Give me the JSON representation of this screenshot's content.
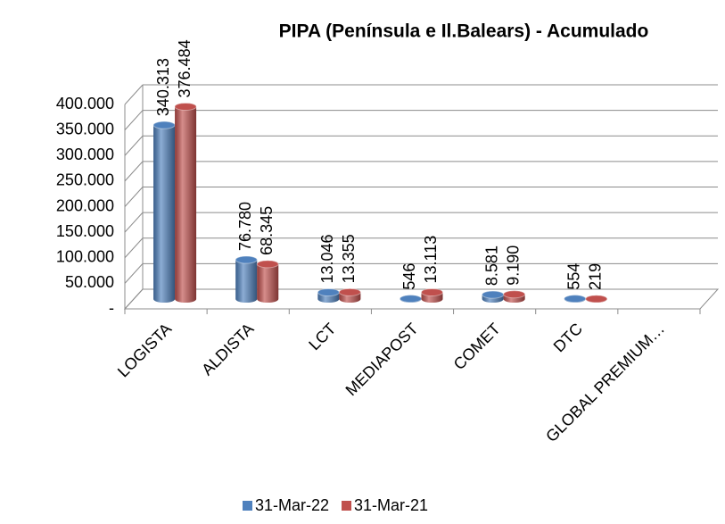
{
  "chart_data": {
    "type": "bar3d",
    "title": "PIPA  (Península e Il.Balears) - Acumulado",
    "categories": [
      "LOGISTA",
      "ALDISTA",
      "LCT",
      "MEDIAPOST",
      "COMET",
      "DTC",
      "GLOBAL PREMIUM…"
    ],
    "series": [
      {
        "name": "31-Mar-22",
        "color": "#4f81bd",
        "values": [
          340313,
          76780,
          13046,
          546,
          8581,
          554,
          null
        ],
        "value_labels": [
          "340.313",
          "76.780",
          "13.046",
          "546",
          "8.581",
          "554",
          null
        ]
      },
      {
        "name": "31-Mar-21",
        "color": "#c0504d",
        "values": [
          376484,
          68345,
          13355,
          13113,
          9190,
          219,
          null
        ],
        "value_labels": [
          "376.484",
          "68.345",
          "13.355",
          "13.113",
          "9.190",
          "219",
          null
        ]
      }
    ],
    "ylim": [
      0,
      400000
    ],
    "yticks": [
      {
        "value": 0,
        "label": "-"
      },
      {
        "value": 50000,
        "label": "50.000"
      },
      {
        "value": 100000,
        "label": "100.000"
      },
      {
        "value": 150000,
        "label": "150.000"
      },
      {
        "value": 200000,
        "label": "200.000"
      },
      {
        "value": 250000,
        "label": "250.000"
      },
      {
        "value": 300000,
        "label": "300.000"
      },
      {
        "value": 350000,
        "label": "350.000"
      },
      {
        "value": 400000,
        "label": "400.000"
      }
    ],
    "grid": true,
    "legend": "bottom"
  }
}
